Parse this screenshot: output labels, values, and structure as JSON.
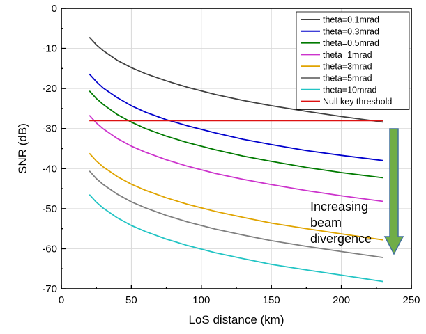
{
  "chart_data": {
    "type": "line",
    "title": "",
    "xlabel": "LoS distance (km)",
    "ylabel": "SNR (dB)",
    "xlim": [
      0,
      250
    ],
    "ylim": [
      -70,
      0
    ],
    "x_ticks": [
      0,
      50,
      100,
      150,
      200,
      250
    ],
    "y_ticks": [
      0,
      -10,
      -20,
      -30,
      -40,
      -50,
      -60,
      -70
    ],
    "grid": true,
    "legend_position": "top-right",
    "x": [
      20,
      25,
      30,
      40,
      50,
      60,
      75,
      90,
      110,
      130,
      150,
      175,
      200,
      230
    ],
    "series": [
      {
        "name": "theta=0.1mrad",
        "color": "#404040",
        "values": [
          -7.2,
          -9.1,
          -10.6,
          -13.0,
          -14.8,
          -16.3,
          -18.1,
          -19.7,
          -21.5,
          -23.0,
          -24.3,
          -25.7,
          -27.0,
          -28.4
        ]
      },
      {
        "name": "theta=0.3mrad",
        "color": "#0000cc",
        "values": [
          -16.4,
          -18.3,
          -19.9,
          -22.3,
          -24.3,
          -25.9,
          -27.8,
          -29.3,
          -31.1,
          -32.7,
          -34.0,
          -35.5,
          -36.7,
          -38.0
        ]
      },
      {
        "name": "theta=0.5mrad",
        "color": "#007a00",
        "values": [
          -20.6,
          -22.5,
          -24.0,
          -26.5,
          -28.4,
          -30.0,
          -31.9,
          -33.5,
          -35.3,
          -36.9,
          -38.2,
          -39.7,
          -41.0,
          -42.3
        ]
      },
      {
        "name": "theta=1mrad",
        "color": "#cc33cc",
        "values": [
          -26.7,
          -28.6,
          -30.1,
          -32.5,
          -34.4,
          -35.9,
          -37.8,
          -39.4,
          -41.2,
          -42.7,
          -44.0,
          -45.5,
          -46.8,
          -48.2
        ]
      },
      {
        "name": "theta=3mrad",
        "color": "#e0a400",
        "values": [
          -36.2,
          -38.1,
          -39.6,
          -42.0,
          -43.9,
          -45.4,
          -47.3,
          -48.9,
          -50.7,
          -52.2,
          -53.6,
          -55.0,
          -56.3,
          -57.8
        ]
      },
      {
        "name": "theta=5mrad",
        "color": "#7f7f7f",
        "values": [
          -40.6,
          -42.5,
          -44.0,
          -46.4,
          -48.3,
          -49.8,
          -51.7,
          -53.3,
          -55.1,
          -56.6,
          -58.0,
          -59.4,
          -60.7,
          -62.2
        ]
      },
      {
        "name": "theta=10mrad",
        "color": "#22c4c4",
        "values": [
          -46.5,
          -48.4,
          -49.9,
          -52.3,
          -54.2,
          -55.7,
          -57.6,
          -59.2,
          -61.0,
          -62.5,
          -63.9,
          -65.3,
          -66.6,
          -68.2
        ]
      }
    ],
    "threshold": {
      "name": "Null key threshold",
      "color": "#dd1111",
      "y": -28,
      "x_range": [
        20,
        230
      ]
    },
    "annotation": {
      "lines": [
        "Increasing",
        "beam",
        "divergence"
      ],
      "arrow_color": "#70ad47",
      "arrow_outline": "#41719c"
    }
  }
}
